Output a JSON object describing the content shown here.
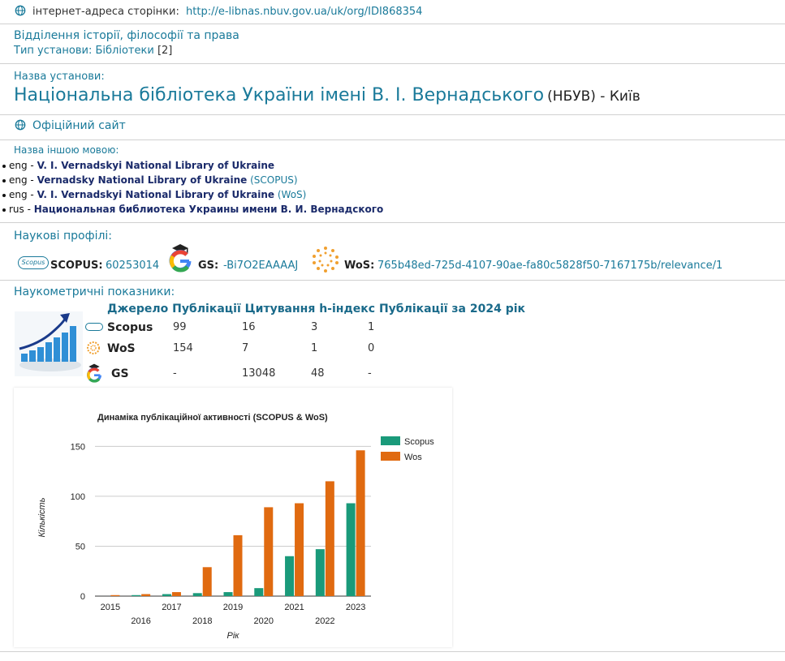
{
  "web": {
    "label": "інтернет-адреса сторінки:",
    "url": "http://e-libnas.nbuv.gov.ua/uk/org/IDI868354"
  },
  "department": "Відділення історії, філософії та права",
  "type": {
    "label": "Тип установи:",
    "value": "Бібліотеки",
    "count": "[2]"
  },
  "name_label": "Назва установи:",
  "name": {
    "main": "Національна бібліотека України імені В. І. Вернадського",
    "abbr": "(НБУВ)",
    "sep": " - ",
    "city": "Київ"
  },
  "official_site": "Офіційний сайт",
  "other_names_label": "Назва іншою мовою:",
  "other_names": [
    {
      "lang": "eng",
      "name": "V. I. Vernadskyi National Library of Ukraine",
      "src": ""
    },
    {
      "lang": "eng",
      "name": "Vernadsky National Library of Ukraine",
      "src": "(SCOPUS)"
    },
    {
      "lang": "eng",
      "name": "V. I. Vernadskyi National Library of Ukraine",
      "src": "(WoS)"
    },
    {
      "lang": "rus",
      "name": "Национальная библиотека Украины имени В. И. Вернадского",
      "src": ""
    }
  ],
  "profiles_label": "Наукові профілі:",
  "profiles": {
    "scopus": {
      "label": "SCOPUS:",
      "id": "60253014",
      "icon_text": "Scopus"
    },
    "gs": {
      "label": "GS:",
      "id": "-Bi7O2EAAAAJ"
    },
    "wos": {
      "label": "WoS:",
      "id": "765b48ed-725d-4107-90ae-fa80c5828f50-7167175b/relevance/1"
    }
  },
  "metrics_label": "Наукометричні показники:",
  "metrics": {
    "headers": [
      "Джерело",
      "Публікації",
      "Цитування",
      "h-індекс",
      "Публікації за 2024 рік"
    ],
    "rows": [
      {
        "source": "Scopus",
        "pubs": "99",
        "cites": "16",
        "h": "3",
        "pubs2024": "1"
      },
      {
        "source": "WoS",
        "pubs": "154",
        "cites": "7",
        "h": "1",
        "pubs2024": "0"
      },
      {
        "source": "GS",
        "pubs": "-",
        "cites": "13048",
        "h": "48",
        "pubs2024": "-"
      }
    ]
  },
  "chart_data": {
    "type": "bar",
    "title": "Динаміка публікаційної активності (SCOPUS & WoS)",
    "xlabel": "Рік",
    "ylabel": "Кількість",
    "categories": [
      "2015",
      "2016",
      "2017",
      "2018",
      "2019",
      "2020",
      "2021",
      "2022",
      "2023"
    ],
    "series": [
      {
        "name": "Scopus",
        "color": "#1a9a7a",
        "values": [
          0,
          1,
          2,
          3,
          4,
          8,
          40,
          47,
          93
        ]
      },
      {
        "name": "Wos",
        "color": "#e06a10",
        "values": [
          1,
          2,
          4,
          29,
          61,
          89,
          93,
          115,
          146
        ]
      }
    ],
    "yticks": [
      "0",
      "50",
      "100",
      "150"
    ],
    "ylim": [
      0,
      160
    ],
    "legend": "right",
    "grid": true
  }
}
